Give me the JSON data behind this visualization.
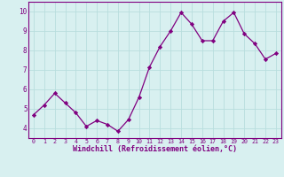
{
  "x": [
    0,
    1,
    2,
    3,
    4,
    5,
    6,
    7,
    8,
    9,
    10,
    11,
    12,
    13,
    14,
    15,
    16,
    17,
    18,
    19,
    20,
    21,
    22,
    23
  ],
  "y": [
    4.7,
    5.2,
    5.8,
    5.3,
    4.8,
    4.1,
    4.4,
    4.2,
    3.85,
    4.45,
    5.6,
    7.15,
    8.2,
    9.0,
    9.95,
    9.35,
    8.5,
    8.5,
    9.5,
    9.95,
    8.85,
    8.35,
    7.55,
    7.85
  ],
  "line_color": "#800080",
  "marker": "D",
  "marker_size": 2.2,
  "bg_color": "#d8f0f0",
  "grid_color": "#b0d8d8",
  "xlabel": "Windchill (Refroidissement éolien,°C)",
  "xlabel_color": "#800080",
  "tick_color": "#800080",
  "axis_color": "#800080",
  "ylim": [
    3.5,
    10.5
  ],
  "xlim": [
    -0.5,
    23.5
  ],
  "yticks": [
    4,
    5,
    6,
    7,
    8,
    9,
    10
  ],
  "xticks": [
    0,
    1,
    2,
    3,
    4,
    5,
    6,
    7,
    8,
    9,
    10,
    11,
    12,
    13,
    14,
    15,
    16,
    17,
    18,
    19,
    20,
    21,
    22,
    23
  ]
}
